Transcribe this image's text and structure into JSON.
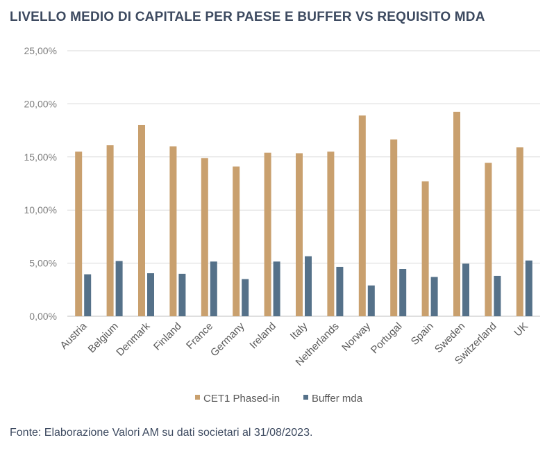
{
  "title": "LIVELLO MEDIO DI CAPITALE PER PAESE E BUFFER VS REQUISITO MDA",
  "source": "Fonte: Elaborazione Valori AM su dati societari al 31/08/2023.",
  "colors": {
    "cet1": "#c9a06e",
    "buffer": "#557189",
    "grid": "#d9d9d9",
    "title": "#3d4a60"
  },
  "chart_data": {
    "type": "bar",
    "title": "LIVELLO MEDIO DI CAPITALE PER PAESE E BUFFER VS REQUISITO MDA",
    "categories": [
      "Austria",
      "Belgium",
      "Denmark",
      "Finland",
      "France",
      "Germany",
      "Ireland",
      "Italy",
      "Netherlands",
      "Norway",
      "Portugal",
      "Spain",
      "Sweden",
      "Switzerland",
      "UK"
    ],
    "series": [
      {
        "name": "CET1 Phased-in",
        "values": [
          15.5,
          16.1,
          18.0,
          16.0,
          14.9,
          14.1,
          15.4,
          15.35,
          15.5,
          18.9,
          16.65,
          12.7,
          19.25,
          14.45,
          15.9
        ]
      },
      {
        "name": "Buffer mda",
        "values": [
          3.95,
          5.2,
          4.05,
          4.0,
          5.15,
          3.5,
          5.15,
          5.65,
          4.65,
          2.9,
          4.45,
          3.7,
          4.95,
          3.8,
          5.25
        ]
      }
    ],
    "yticks": [
      "0,00%",
      "5,00%",
      "10,00%",
      "15,00%",
      "20,00%",
      "25,00%"
    ],
    "ylim": [
      0,
      25
    ],
    "grid": true,
    "legend": "bottom"
  }
}
